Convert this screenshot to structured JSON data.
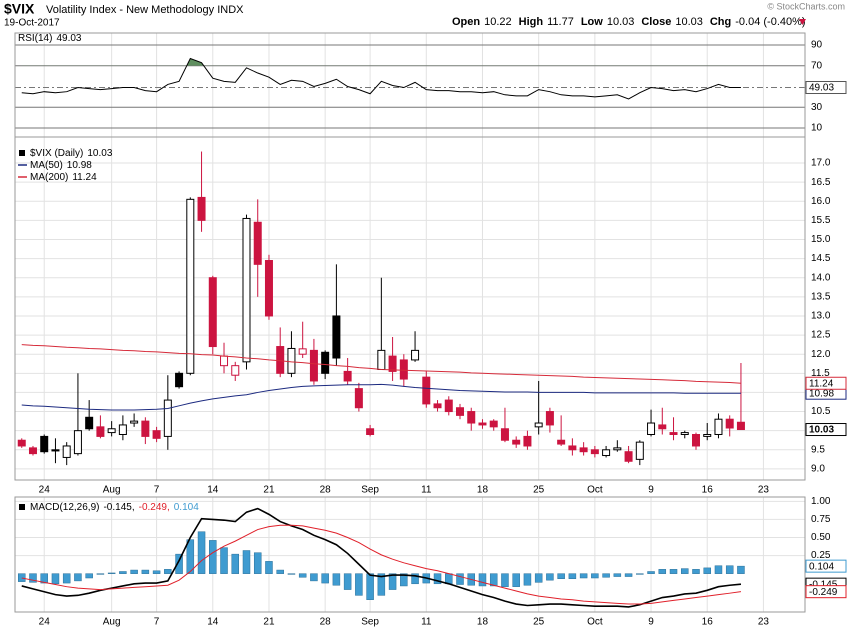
{
  "header": {
    "symbol": "$VIX",
    "name": "Volatility Index - New Methodology INDX",
    "date": "19-Oct-2017",
    "quote": [
      {
        "label": "Open",
        "value": 10.22
      },
      {
        "label": "High",
        "value": 11.77
      },
      {
        "label": "Low",
        "value": 10.03
      },
      {
        "label": "Close",
        "value": 10.03
      }
    ],
    "change": {
      "label": "Chg",
      "text": "-0.04 (-0.40%)"
    },
    "copyright": "© StockCharts.com"
  },
  "x_axis": {
    "xlim": [
      -0.6,
      69.7
    ],
    "xticks": [
      {
        "value": 2,
        "label": "24"
      },
      {
        "value": 8,
        "label": "Aug"
      },
      {
        "value": 12,
        "label": "7"
      },
      {
        "value": 17,
        "label": "14"
      },
      {
        "value": 22,
        "label": "21"
      },
      {
        "value": 27,
        "label": "28"
      },
      {
        "value": 31,
        "label": "Sep"
      },
      {
        "value": 36,
        "label": "11"
      },
      {
        "value": 41,
        "label": "18"
      },
      {
        "value": 46,
        "label": "25"
      },
      {
        "value": 51,
        "label": "Oct"
      },
      {
        "value": 56,
        "label": "9"
      },
      {
        "value": 61,
        "label": "16"
      },
      {
        "value": 66,
        "label": "23"
      }
    ]
  },
  "chart_data": [
    {
      "type": "line",
      "ylim": [
        1.3,
        101.6
      ],
      "yticks": [
        10,
        30,
        70,
        90
      ],
      "overbought": 70,
      "fill_color": "#5f8f5f",
      "grid": true,
      "series": [
        {
          "name": "RSI(14)",
          "color": "#000000",
          "values": [
            44,
            43,
            45,
            44,
            45,
            49,
            48,
            47,
            48,
            49,
            49,
            46,
            45,
            52,
            55,
            77,
            73,
            58,
            55,
            54,
            68,
            63,
            59,
            52,
            56,
            55,
            50,
            53,
            57,
            50,
            47,
            43,
            55,
            51,
            49,
            54,
            47,
            46,
            46,
            45,
            45,
            44,
            45,
            42,
            41,
            41,
            47,
            45,
            42,
            41,
            41,
            40,
            41,
            42,
            38,
            44,
            49,
            48,
            46,
            47,
            45,
            48,
            52,
            49,
            49.03
          ]
        }
      ]
    },
    {
      "type": "candlestick",
      "ylim": [
        8.71,
        17.68
      ],
      "yticks": [
        {
          "value": 9,
          "label": "9.0"
        },
        9.5,
        {
          "value": 10,
          "label": "10.0"
        },
        10.5,
        {
          "value": 11,
          "label": "11.0"
        },
        11.5,
        {
          "value": 12,
          "label": "12.0"
        },
        12.5,
        {
          "value": 13,
          "label": "13.0"
        },
        13.5,
        {
          "value": 14,
          "label": "14.0"
        },
        14.5,
        {
          "value": 15,
          "label": "15.0"
        },
        15.5,
        {
          "value": 16,
          "label": "16.0"
        },
        16.5,
        {
          "value": 17,
          "label": "17.0"
        }
      ],
      "grid": true,
      "up_color": "#000000",
      "down_color": "#cc1440",
      "series": [
        {
          "name": "$VIX (Daily)",
          "open": [
            9.75,
            9.55,
            9.85,
            9.5,
            9.3,
            9.4,
            10.35,
            10.1,
            9.95,
            9.9,
            10.2,
            10.25,
            10.0,
            9.85,
            11.5,
            11.5,
            16.1,
            14.0,
            11.7,
            11.45,
            11.8,
            15.45,
            14.45,
            12.2,
            11.5,
            12.0,
            12.1,
            12.05,
            13.0,
            11.55,
            11.1,
            10.05,
            11.6,
            11.95,
            11.85,
            11.85,
            11.4,
            10.7,
            10.8,
            10.6,
            10.5,
            10.2,
            10.25,
            10.05,
            9.75,
            9.85,
            10.1,
            10.5,
            9.75,
            9.6,
            9.55,
            9.5,
            9.35,
            9.5,
            9.45,
            9.25,
            9.9,
            10.15,
            9.95,
            9.9,
            9.9,
            9.85,
            9.9,
            10.3,
            10.22
          ],
          "high": [
            9.8,
            9.6,
            9.9,
            9.8,
            9.7,
            11.5,
            10.8,
            10.4,
            10.25,
            10.4,
            10.45,
            10.35,
            10.1,
            11.45,
            11.55,
            16.1,
            17.3,
            14.05,
            12.3,
            11.8,
            15.65,
            16.05,
            14.6,
            12.7,
            12.6,
            12.85,
            12.4,
            12.1,
            14.35,
            11.9,
            11.25,
            10.15,
            14.0,
            12.45,
            12.0,
            12.6,
            11.55,
            10.8,
            10.9,
            10.7,
            10.6,
            10.3,
            10.3,
            10.6,
            9.85,
            10.0,
            11.3,
            10.6,
            10.4,
            9.8,
            9.7,
            9.6,
            9.6,
            9.75,
            9.6,
            9.75,
            10.55,
            10.6,
            10.35,
            10.0,
            9.95,
            10.2,
            10.45,
            10.4,
            11.77
          ],
          "low": [
            9.55,
            9.35,
            9.4,
            9.15,
            9.1,
            9.35,
            10.0,
            9.8,
            9.85,
            9.75,
            10.1,
            9.65,
            9.7,
            9.5,
            11.1,
            11.45,
            15.2,
            12.0,
            11.5,
            11.3,
            11.6,
            13.5,
            12.9,
            11.4,
            11.4,
            11.9,
            11.2,
            11.35,
            11.7,
            11.2,
            10.5,
            9.85,
            11.6,
            11.3,
            11.15,
            11.8,
            10.6,
            10.5,
            10.4,
            10.3,
            10.0,
            10.05,
            10.0,
            9.7,
            9.55,
            9.5,
            9.9,
            9.95,
            9.6,
            9.35,
            9.35,
            9.3,
            9.3,
            9.45,
            9.15,
            9.1,
            9.85,
            9.9,
            9.75,
            9.8,
            9.5,
            9.75,
            9.8,
            9.85,
            10.03
          ],
          "close": [
            9.6,
            9.4,
            9.45,
            9.47,
            9.6,
            10.0,
            10.05,
            9.85,
            10.05,
            10.15,
            10.25,
            9.85,
            9.8,
            10.8,
            11.15,
            16.05,
            15.5,
            12.2,
            11.95,
            11.7,
            15.55,
            14.35,
            13.0,
            11.5,
            12.15,
            12.14,
            11.3,
            11.5,
            11.9,
            11.3,
            10.6,
            9.9,
            12.1,
            11.55,
            11.35,
            12.1,
            10.7,
            10.6,
            10.5,
            10.4,
            10.2,
            10.15,
            10.1,
            9.75,
            9.65,
            9.6,
            10.2,
            10.15,
            9.65,
            9.5,
            9.45,
            9.4,
            9.5,
            9.55,
            9.2,
            9.7,
            10.2,
            10.05,
            9.9,
            9.95,
            9.6,
            9.9,
            10.3,
            10.07,
            10.03
          ]
        },
        {
          "name": "MA(50)",
          "color": "#1c2a80",
          "values": [
            10.67,
            10.65,
            10.64,
            10.62,
            10.6,
            10.58,
            10.56,
            10.55,
            10.54,
            10.54,
            10.54,
            10.55,
            10.56,
            10.58,
            10.65,
            10.72,
            10.78,
            10.83,
            10.87,
            10.91,
            10.94,
            11.0,
            11.05,
            11.09,
            11.13,
            11.16,
            11.17,
            11.18,
            11.19,
            11.2,
            11.2,
            11.2,
            11.21,
            11.19,
            11.16,
            11.13,
            11.11,
            11.09,
            11.07,
            11.05,
            11.04,
            11.03,
            11.02,
            11.01,
            11.01,
            11.01,
            11.0,
            11.0,
            11.0,
            11.0,
            11.0,
            10.99,
            10.99,
            10.99,
            10.99,
            10.99,
            10.99,
            10.99,
            10.99,
            10.98,
            10.98,
            10.98,
            10.98,
            10.98,
            10.98
          ]
        },
        {
          "name": "MA(200)",
          "color": "#d62b3a",
          "values": [
            12.25,
            12.23,
            12.22,
            12.2,
            12.18,
            12.17,
            12.15,
            12.14,
            12.12,
            12.1,
            12.09,
            12.07,
            12.06,
            12.04,
            12.02,
            12.01,
            11.99,
            11.98,
            11.95,
            11.93,
            11.9,
            11.88,
            11.85,
            11.83,
            11.8,
            11.78,
            11.75,
            11.73,
            11.7,
            11.68,
            11.65,
            11.63,
            11.6,
            11.59,
            11.58,
            11.57,
            11.56,
            11.55,
            11.54,
            11.53,
            11.51,
            11.5,
            11.49,
            11.48,
            11.47,
            11.46,
            11.45,
            11.44,
            11.43,
            11.42,
            11.4,
            11.39,
            11.38,
            11.37,
            11.36,
            11.35,
            11.34,
            11.33,
            11.32,
            11.31,
            11.29,
            11.28,
            11.27,
            11.26,
            11.24
          ]
        }
      ]
    },
    {
      "type": "combo",
      "ylim": [
        -0.53,
        1.06
      ],
      "yticks": [
        {
          "value": 1,
          "label": "1.00"
        },
        0.75,
        {
          "value": 0.5,
          "label": "0.50"
        },
        0.25
      ],
      "grid": true,
      "legend": {
        "label": "MACD(12,26,9)",
        "entries": [
          "-0.145,",
          "-0.249,",
          "0.104"
        ]
      },
      "series": [
        {
          "name": "MACD",
          "type": "line",
          "color": "#000000",
          "values": [
            -0.17,
            -0.21,
            -0.25,
            -0.29,
            -0.31,
            -0.3,
            -0.27,
            -0.23,
            -0.2,
            -0.17,
            -0.14,
            -0.13,
            -0.13,
            -0.1,
            0.18,
            0.5,
            0.76,
            0.75,
            0.74,
            0.72,
            0.85,
            0.9,
            0.82,
            0.72,
            0.66,
            0.61,
            0.53,
            0.47,
            0.4,
            0.28,
            0.13,
            -0.02,
            -0.04,
            -0.02,
            -0.02,
            -0.03,
            -0.06,
            -0.1,
            -0.14,
            -0.19,
            -0.24,
            -0.29,
            -0.33,
            -0.38,
            -0.42,
            -0.44,
            -0.43,
            -0.42,
            -0.42,
            -0.43,
            -0.44,
            -0.45,
            -0.45,
            -0.45,
            -0.46,
            -0.43,
            -0.38,
            -0.33,
            -0.31,
            -0.28,
            -0.27,
            -0.23,
            -0.18,
            -0.16,
            -0.145
          ]
        },
        {
          "name": "Signal",
          "type": "line",
          "color": "#e0202a",
          "values": [
            -0.06,
            -0.09,
            -0.12,
            -0.15,
            -0.18,
            -0.2,
            -0.21,
            -0.22,
            -0.21,
            -0.2,
            -0.19,
            -0.18,
            -0.17,
            -0.16,
            -0.09,
            0.03,
            0.18,
            0.29,
            0.38,
            0.45,
            0.53,
            0.61,
            0.65,
            0.67,
            0.67,
            0.66,
            0.63,
            0.6,
            0.56,
            0.5,
            0.43,
            0.34,
            0.26,
            0.2,
            0.15,
            0.11,
            0.07,
            0.04,
            0.0,
            -0.04,
            -0.08,
            -0.12,
            -0.16,
            -0.2,
            -0.24,
            -0.28,
            -0.31,
            -0.33,
            -0.35,
            -0.36,
            -0.38,
            -0.39,
            -0.4,
            -0.41,
            -0.42,
            -0.42,
            -0.41,
            -0.39,
            -0.37,
            -0.35,
            -0.33,
            -0.31,
            -0.29,
            -0.27,
            -0.249
          ]
        },
        {
          "name": "Histogram",
          "type": "bar",
          "color": "#3f9bd0",
          "values": [
            -0.11,
            -0.12,
            -0.13,
            -0.14,
            -0.13,
            -0.1,
            -0.06,
            -0.01,
            0.01,
            0.03,
            0.05,
            0.05,
            0.04,
            0.06,
            0.27,
            0.47,
            0.58,
            0.46,
            0.36,
            0.27,
            0.32,
            0.29,
            0.17,
            0.05,
            -0.01,
            -0.05,
            -0.1,
            -0.13,
            -0.16,
            -0.22,
            -0.3,
            -0.36,
            -0.3,
            -0.22,
            -0.17,
            -0.14,
            -0.13,
            -0.14,
            -0.14,
            -0.15,
            -0.16,
            -0.17,
            -0.17,
            -0.18,
            -0.18,
            -0.16,
            -0.12,
            -0.09,
            -0.07,
            -0.07,
            -0.06,
            -0.06,
            -0.05,
            -0.04,
            -0.04,
            -0.01,
            0.03,
            0.06,
            0.06,
            0.07,
            0.06,
            0.08,
            0.11,
            0.11,
            0.104
          ]
        }
      ]
    }
  ]
}
